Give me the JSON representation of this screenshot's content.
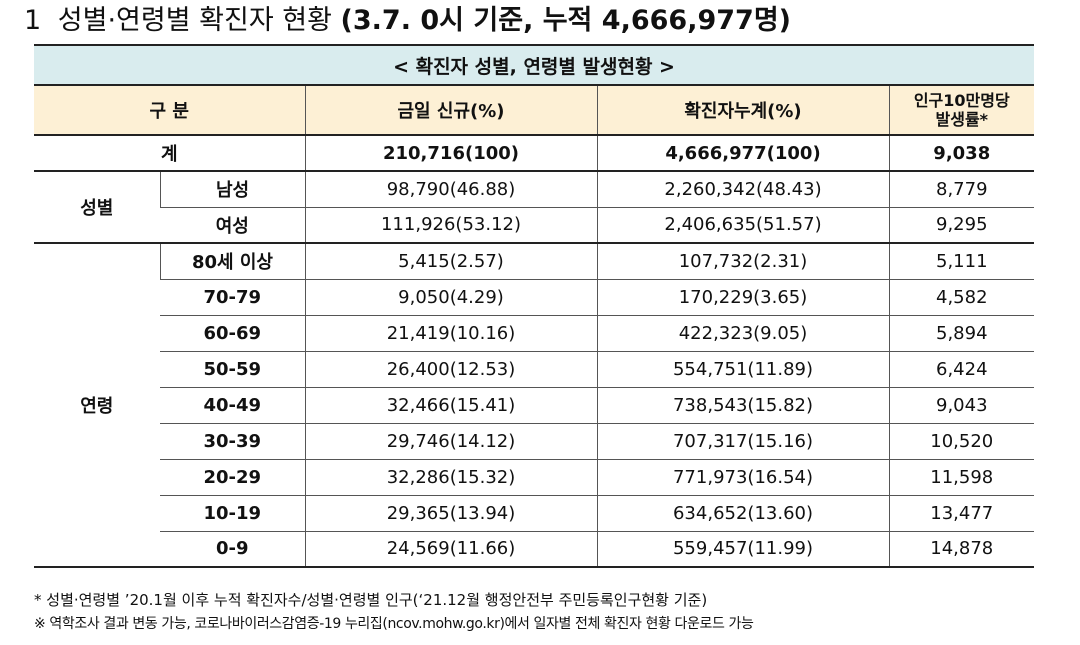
{
  "title": {
    "number": "1",
    "main": "성별·연령별 확진자 현황",
    "paren": "(3.7. 0시 기준, 누적 4,666,977명)"
  },
  "table": {
    "caption": "< 확진자 성별, 연령별 발생현황 >",
    "headers": {
      "category": "구 분",
      "daily": "금일 신규(%)",
      "cumulative": "확진자누계(%)",
      "rate_line1": "인구10만명당",
      "rate_line2": "발생률*"
    },
    "total": {
      "label": "계",
      "daily": "210,716(100)",
      "cumulative": "4,666,977(100)",
      "rate": "9,038"
    },
    "sex": {
      "group": "성별",
      "rows": [
        {
          "label": "남성",
          "daily": "98,790(46.88)",
          "cumulative": "2,260,342(48.43)",
          "rate": "8,779"
        },
        {
          "label": "여성",
          "daily": "111,926(53.12)",
          "cumulative": "2,406,635(51.57)",
          "rate": "9,295"
        }
      ]
    },
    "age": {
      "group": "연령",
      "rows": [
        {
          "label": "80세 이상",
          "daily": "5,415(2.57)",
          "cumulative": "107,732(2.31)",
          "rate": "5,111"
        },
        {
          "label": "70-79",
          "daily": "9,050(4.29)",
          "cumulative": "170,229(3.65)",
          "rate": "4,582"
        },
        {
          "label": "60-69",
          "daily": "21,419(10.16)",
          "cumulative": "422,323(9.05)",
          "rate": "5,894"
        },
        {
          "label": "50-59",
          "daily": "26,400(12.53)",
          "cumulative": "554,751(11.89)",
          "rate": "6,424"
        },
        {
          "label": "40-49",
          "daily": "32,466(15.41)",
          "cumulative": "738,543(15.82)",
          "rate": "9,043"
        },
        {
          "label": "30-39",
          "daily": "29,746(14.12)",
          "cumulative": "707,317(15.16)",
          "rate": "10,520"
        },
        {
          "label": "20-29",
          "daily": "32,286(15.32)",
          "cumulative": "771,973(16.54)",
          "rate": "11,598"
        },
        {
          "label": "10-19",
          "daily": "29,365(13.94)",
          "cumulative": "634,652(13.60)",
          "rate": "13,477"
        },
        {
          "label": "0-9",
          "daily": "24,569(11.66)",
          "cumulative": "559,457(11.99)",
          "rate": "14,878"
        }
      ]
    }
  },
  "notes": {
    "note1": "* 성별·연령별 ’20.1월 이후 누적 확진자수/성별·연령별 인구(‘21.12월 행정안전부 주민등록인구현황 기준)",
    "note2": "※ 역학조사 결과 변동 가능, 코로나바이러스감염증-19 누리집(ncov.mohw.go.kr)에서 일자별 전체 확진자 현황 다운로드 가능"
  }
}
